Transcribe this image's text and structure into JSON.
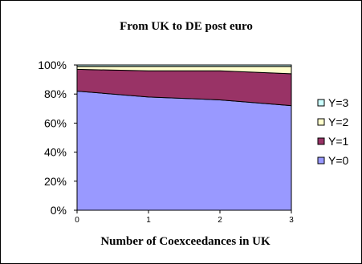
{
  "chart_data": {
    "type": "area",
    "stacked": true,
    "percent": true,
    "title": "From UK to DE post euro",
    "xlabel": "Number of Coexceedances in UK",
    "ylabel": "",
    "x": [
      0,
      1,
      2,
      3
    ],
    "ylim": [
      0,
      100
    ],
    "yticks": [
      "0%",
      "20%",
      "40%",
      "60%",
      "80%",
      "100%"
    ],
    "legend_position": "right",
    "series": [
      {
        "name": "Y=0",
        "color": "#9999FF",
        "values": [
          82,
          78,
          76,
          72
        ]
      },
      {
        "name": "Y=1",
        "color": "#993366",
        "values": [
          15,
          18,
          20,
          22
        ]
      },
      {
        "name": "Y=2",
        "color": "#FFFFCC",
        "values": [
          2,
          3,
          3,
          5
        ]
      },
      {
        "name": "Y=3",
        "color": "#CCFFFF",
        "values": [
          1,
          1,
          1,
          1
        ]
      }
    ]
  }
}
